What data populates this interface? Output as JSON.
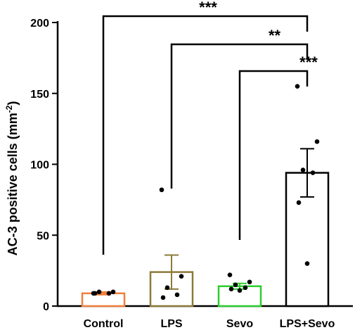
{
  "chart_data": {
    "type": "bar",
    "title": "",
    "xlabel": "",
    "ylabel": "AC-3 positive cells (mm",
    "ylabel_superscript": "-2",
    "ylabel_suffix": ")",
    "ylim": [
      0,
      200
    ],
    "yticks": [
      0,
      50,
      100,
      150,
      200
    ],
    "categories": [
      "Control",
      "LPS",
      "Sevo",
      "LPS+Sevo"
    ],
    "colors": [
      "#f07f3c",
      "#8b7a3a",
      "#2ecc2e",
      "#000000"
    ],
    "means": [
      9,
      24,
      14,
      94
    ],
    "error_upper": [
      10,
      36,
      16,
      111
    ],
    "error_lower": [
      8,
      12,
      12,
      77
    ],
    "points": [
      [
        9,
        10,
        10,
        9,
        9
      ],
      [
        82,
        21,
        13,
        8,
        6
      ],
      [
        22,
        17,
        15,
        13,
        12,
        11
      ],
      [
        155,
        116,
        96,
        94,
        73,
        30
      ]
    ],
    "significance": [
      {
        "from": "Control",
        "to": "LPS+Sevo",
        "label": "***"
      },
      {
        "from": "LPS",
        "to": "LPS+Sevo",
        "label": "**"
      },
      {
        "from": "Sevo",
        "to": "LPS+Sevo",
        "label": "***"
      }
    ]
  }
}
